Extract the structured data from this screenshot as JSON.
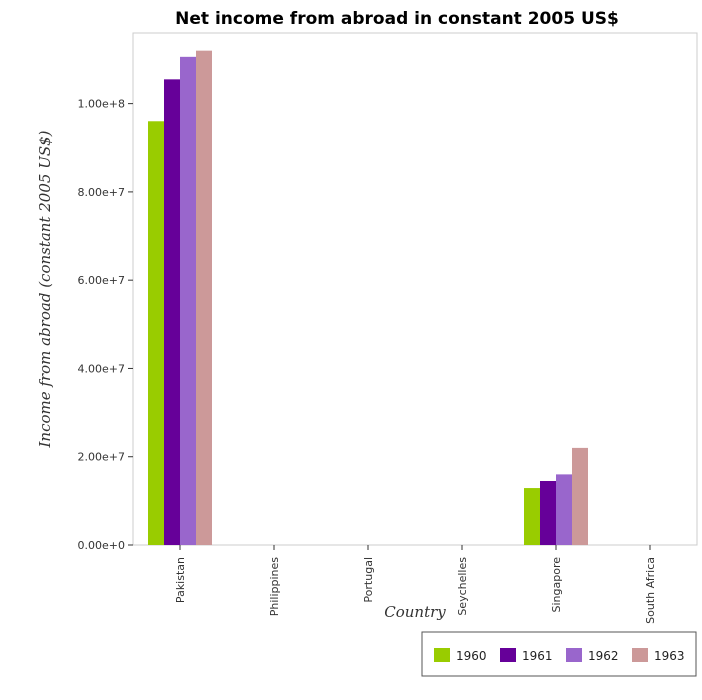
{
  "chart_data": {
    "type": "bar",
    "title": "Net income from abroad in constant 2005 US$",
    "xlabel": "Country",
    "ylabel": "Income from abroad (constant 2005 US$)",
    "categories": [
      "Pakistan",
      "Philippines",
      "Portugal",
      "Seychelles",
      "Singapore",
      "South Africa"
    ],
    "series": [
      {
        "name": "1960",
        "color": "#99cc00",
        "values": [
          96000000,
          0,
          0,
          0,
          12900000,
          0
        ]
      },
      {
        "name": "1961",
        "color": "#660099",
        "values": [
          105500000,
          0,
          0,
          0,
          14500000,
          0
        ]
      },
      {
        "name": "1962",
        "color": "#9966cc",
        "values": [
          110600000,
          0,
          0,
          0,
          16000000,
          0
        ]
      },
      {
        "name": "1963",
        "color": "#cc9999",
        "values": [
          112000000,
          0,
          0,
          0,
          22000000,
          0
        ]
      }
    ],
    "ylim": [
      0,
      116000000
    ],
    "yticks": [
      0,
      20000000,
      40000000,
      60000000,
      80000000,
      100000000
    ],
    "ytick_labels": [
      "0.00e+0",
      "2.00e+7",
      "4.00e+7",
      "6.00e+7",
      "8.00e+7",
      "1.00e+8"
    ],
    "grid": false,
    "legend_position": "bottom-right"
  }
}
